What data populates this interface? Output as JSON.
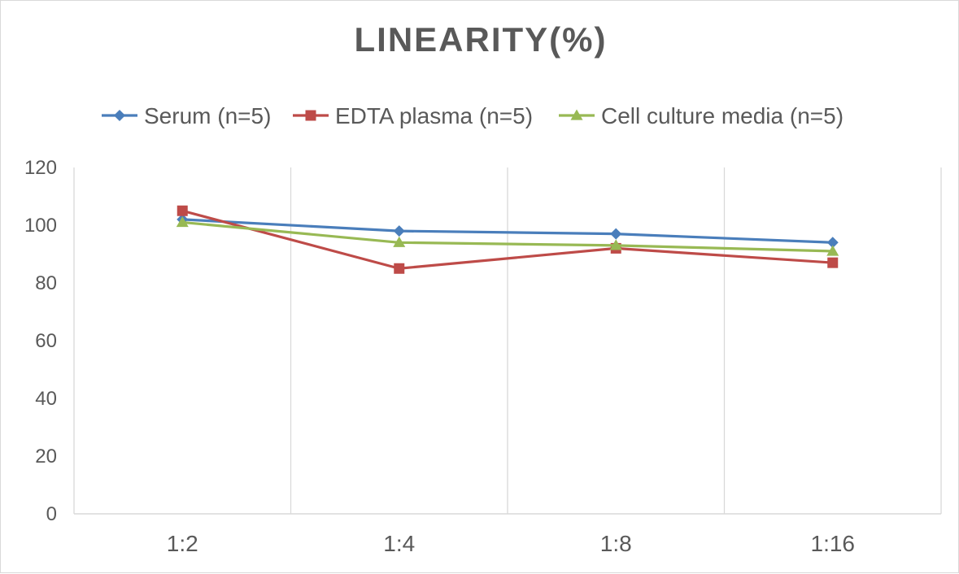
{
  "chart_data": {
    "type": "line",
    "title": "LINEARITY(%)",
    "categories": [
      "1:2",
      "1:4",
      "1:8",
      "1:16"
    ],
    "ylim": [
      0,
      120
    ],
    "yticks": [
      0,
      20,
      40,
      60,
      80,
      100,
      120
    ],
    "grid": "vertical",
    "legend_position": "top",
    "series": [
      {
        "name": "Serum (n=5)",
        "values": [
          102,
          98,
          97,
          94
        ],
        "color": "#4a7ebb",
        "marker": "diamond"
      },
      {
        "name": "EDTA plasma (n=5)",
        "values": [
          105,
          85,
          92,
          87
        ],
        "color": "#be4b48",
        "marker": "square"
      },
      {
        "name": "Cell culture media (n=5)",
        "values": [
          101,
          94,
          93,
          91
        ],
        "color": "#98b954",
        "marker": "triangle"
      }
    ]
  }
}
